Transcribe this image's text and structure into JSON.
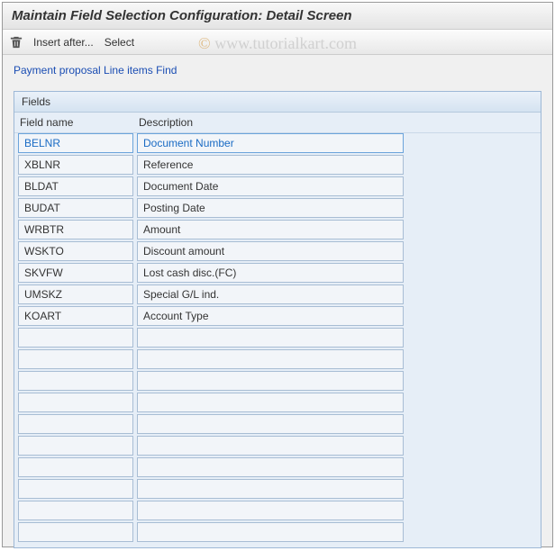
{
  "title": "Maintain Field Selection Configuration: Detail Screen",
  "toolbar": {
    "insert_after": "Insert after...",
    "select": "Select"
  },
  "breadcrumb": "Payment proposal Line items Find",
  "panel": {
    "header": "Fields",
    "col_name": "Field name",
    "col_desc": "Description"
  },
  "rows": [
    {
      "name": "BELNR",
      "desc": "Document Number",
      "selected": true
    },
    {
      "name": "XBLNR",
      "desc": "Reference",
      "selected": false
    },
    {
      "name": "BLDAT",
      "desc": "Document Date",
      "selected": false
    },
    {
      "name": "BUDAT",
      "desc": "Posting Date",
      "selected": false
    },
    {
      "name": "WRBTR",
      "desc": "Amount",
      "selected": false
    },
    {
      "name": "WSKTO",
      "desc": "Discount amount",
      "selected": false
    },
    {
      "name": "SKVFW",
      "desc": "Lost cash disc.(FC)",
      "selected": false
    },
    {
      "name": "UMSKZ",
      "desc": "Special G/L ind.",
      "selected": false
    },
    {
      "name": "KOART",
      "desc": "Account Type",
      "selected": false
    },
    {
      "name": "",
      "desc": "",
      "selected": false
    },
    {
      "name": "",
      "desc": "",
      "selected": false
    },
    {
      "name": "",
      "desc": "",
      "selected": false
    },
    {
      "name": "",
      "desc": "",
      "selected": false
    },
    {
      "name": "",
      "desc": "",
      "selected": false
    },
    {
      "name": "",
      "desc": "",
      "selected": false
    },
    {
      "name": "",
      "desc": "",
      "selected": false
    },
    {
      "name": "",
      "desc": "",
      "selected": false
    },
    {
      "name": "",
      "desc": "",
      "selected": false
    },
    {
      "name": "",
      "desc": "",
      "selected": false
    }
  ],
  "watermark": {
    "copy": "©",
    "text": "www.tutorialkart.com"
  },
  "colors": {
    "panel_bg": "#e6eef7",
    "cell_bg": "#f2f5f9",
    "cell_border": "#a8bdd4",
    "link": "#1a4db3"
  }
}
